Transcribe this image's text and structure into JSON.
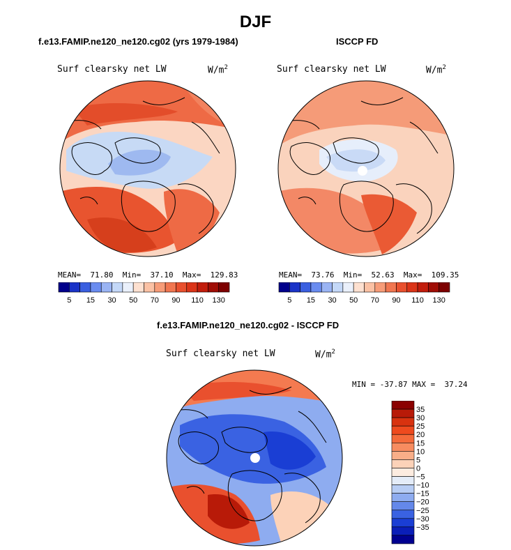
{
  "main_title": "DJF",
  "panels": {
    "left": {
      "title": "f.e13.FAMIP.ne120_ne120.cg02 (yrs 1979-1984)",
      "variable": "Surf clearsky net LW",
      "units": "W/m",
      "units_exp": "2",
      "mean_label": "MEAN=",
      "mean_value": "71.80",
      "min_label": "Min=",
      "min_value": "37.10",
      "max_label": "Max=",
      "max_value": "129.83"
    },
    "right": {
      "title": "ISCCP FD",
      "variable": "Surf clearsky net LW",
      "units": "W/m",
      "units_exp": "2",
      "mean_label": "MEAN=",
      "mean_value": "73.76",
      "min_label": "Min=",
      "min_value": "52.63",
      "max_label": "Max=",
      "max_value": "109.35"
    },
    "diff": {
      "title": "f.e13.FAMIP.ne120_ne120.cg02 - ISCCP FD",
      "variable": "Surf clearsky net LW",
      "units": "W/m",
      "units_exp": "2",
      "min_label": "MIN =",
      "min_value": "-37.87",
      "max_label": "MAX =",
      "max_value": "37.24"
    }
  },
  "chart_data": [
    {
      "type": "heatmap",
      "title": "f.e13.FAMIP.ne120_ne120.cg02 (yrs 1979-1984)",
      "projection": "north polar stereographic",
      "variable": "Surf clearsky net LW",
      "units": "W/m2",
      "mean": 71.8,
      "min": 37.1,
      "max": 129.83,
      "colorbar_ticks": [
        "5",
        "15",
        "30",
        "50",
        "70",
        "90",
        "110",
        "130"
      ],
      "colorbar_colors": [
        "#00008b",
        "#1a33c8",
        "#3a5fe0",
        "#6a8cf0",
        "#9ab4f4",
        "#c4d8f8",
        "#eaf0fb",
        "#fde0d0",
        "#fbc1a4",
        "#f79c78",
        "#f17650",
        "#e9502e",
        "#db3418",
        "#c21d0c",
        "#a00d05",
        "#7d0000"
      ]
    },
    {
      "type": "heatmap",
      "title": "ISCCP FD",
      "projection": "north polar stereographic",
      "variable": "Surf clearsky net LW",
      "units": "W/m2",
      "mean": 73.76,
      "min": 52.63,
      "max": 109.35,
      "colorbar_ticks": [
        "5",
        "15",
        "30",
        "50",
        "70",
        "90",
        "110",
        "130"
      ],
      "colorbar_colors": [
        "#00008b",
        "#1a33c8",
        "#3a5fe0",
        "#6a8cf0",
        "#9ab4f4",
        "#c4d8f8",
        "#eaf0fb",
        "#fde0d0",
        "#fbc1a4",
        "#f79c78",
        "#f17650",
        "#e9502e",
        "#db3418",
        "#c21d0c",
        "#a00d05",
        "#7d0000"
      ]
    },
    {
      "type": "heatmap",
      "title": "f.e13.FAMIP.ne120_ne120.cg02 - ISCCP FD",
      "projection": "north polar stereographic",
      "variable": "Surf clearsky net LW",
      "units": "W/m2",
      "min": -37.87,
      "max": 37.24,
      "colorbar_ticks": [
        "35",
        "30",
        "25",
        "20",
        "15",
        "10",
        "5",
        "0",
        "−5",
        "−10",
        "−15",
        "−20",
        "−25",
        "−30",
        "−35"
      ],
      "colorbar_colors": [
        "#8b0000",
        "#b81a08",
        "#d8320f",
        "#ee4a1e",
        "#f46a3a",
        "#f78c60",
        "#f9ae88",
        "#fcd2b8",
        "#fdece0",
        "#e4ecf8",
        "#b8cdf4",
        "#8eacf0",
        "#6488ea",
        "#3a62e2",
        "#1a3ed4",
        "#0a1eb8",
        "#000090"
      ]
    }
  ]
}
